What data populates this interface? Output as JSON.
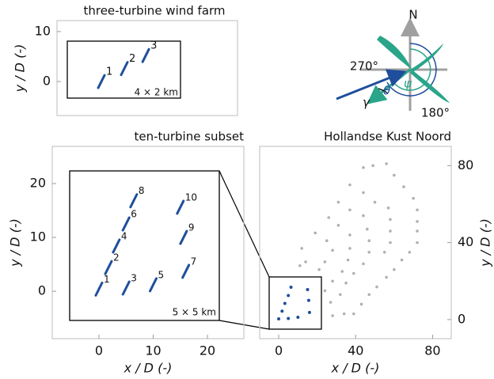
{
  "chart_data": [
    {
      "type": "scatter",
      "title": "three-turbine wind farm",
      "ylabel": "y / D (-)",
      "x": [
        0,
        4.6,
        8.9
      ],
      "y": [
        0,
        2.6,
        5.2
      ],
      "labels": [
        "1",
        "2",
        "3"
      ],
      "color": "#1f4e9c",
      "annotation": "4 × 2 km",
      "xlim": [
        -8.9,
        27.3
      ],
      "ylim": [
        -6.8,
        12.2
      ],
      "yticks": [
        0,
        10
      ]
    },
    {
      "type": "scatter",
      "title": "ten-turbine subset",
      "xlabel": "x / D (-)",
      "ylabel": "y / D (-)",
      "x": [
        0,
        1.75,
        5,
        3.2,
        10,
        5,
        16,
        6.4,
        15.6,
        15
      ],
      "y": [
        0.4,
        4.4,
        0.6,
        8.4,
        1.2,
        12.5,
        3.7,
        16.8,
        10,
        15.6
      ],
      "labels": [
        "1",
        "2",
        "3",
        "4",
        "5",
        "6",
        "7",
        "8",
        "9",
        "10"
      ],
      "color": "#1f4e9c",
      "annotation": "5 × 5 km",
      "xlim": [
        -8.6,
        26.7
      ],
      "ylim": [
        -8.8,
        26.9
      ],
      "xticks": [
        0,
        10,
        20
      ],
      "yticks": [
        0,
        10,
        20
      ]
    },
    {
      "type": "scatter",
      "title": "Hollandse Kust Noord",
      "xlabel": "x / D (-)",
      "ylabel": "y / D (-)",
      "x": [
        44,
        49,
        56,
        60,
        65,
        70,
        72,
        72,
        72,
        72,
        68,
        64,
        60,
        56,
        51,
        47,
        43,
        39,
        34,
        28,
        37,
        44,
        50,
        57,
        58,
        58,
        58,
        55,
        31,
        37,
        44,
        46,
        47,
        47,
        44,
        39,
        35,
        26,
        31,
        37,
        37,
        36,
        33,
        28,
        24,
        19,
        25,
        28,
        24,
        21,
        12,
        14,
        11,
        32,
        27
      ],
      "y": [
        79,
        80,
        81,
        75,
        69,
        63,
        57,
        51,
        46,
        40,
        35,
        31,
        26,
        22,
        17,
        13,
        8,
        3,
        3,
        2,
        70,
        66,
        61,
        58,
        52,
        46,
        40,
        35,
        61,
        57,
        54,
        47,
        41,
        35,
        29,
        24,
        19,
        53,
        49,
        44,
        37,
        31,
        25,
        20,
        15,
        45,
        41,
        36,
        30,
        26,
        37,
        30,
        28,
        13,
        9
      ],
      "color": "#b0b0b0",
      "xlim": [
        -9.9,
        89.7
      ],
      "ylim": [
        -9.9,
        90
      ],
      "xticks": [
        0,
        40,
        80
      ],
      "yticks": [
        0,
        40,
        80
      ],
      "y_axis_side": "right"
    }
  ],
  "compass": {
    "north": "N",
    "west": "270°",
    "south": "180°",
    "theta": "θ",
    "psi": "ψ",
    "gamma": "γ"
  }
}
